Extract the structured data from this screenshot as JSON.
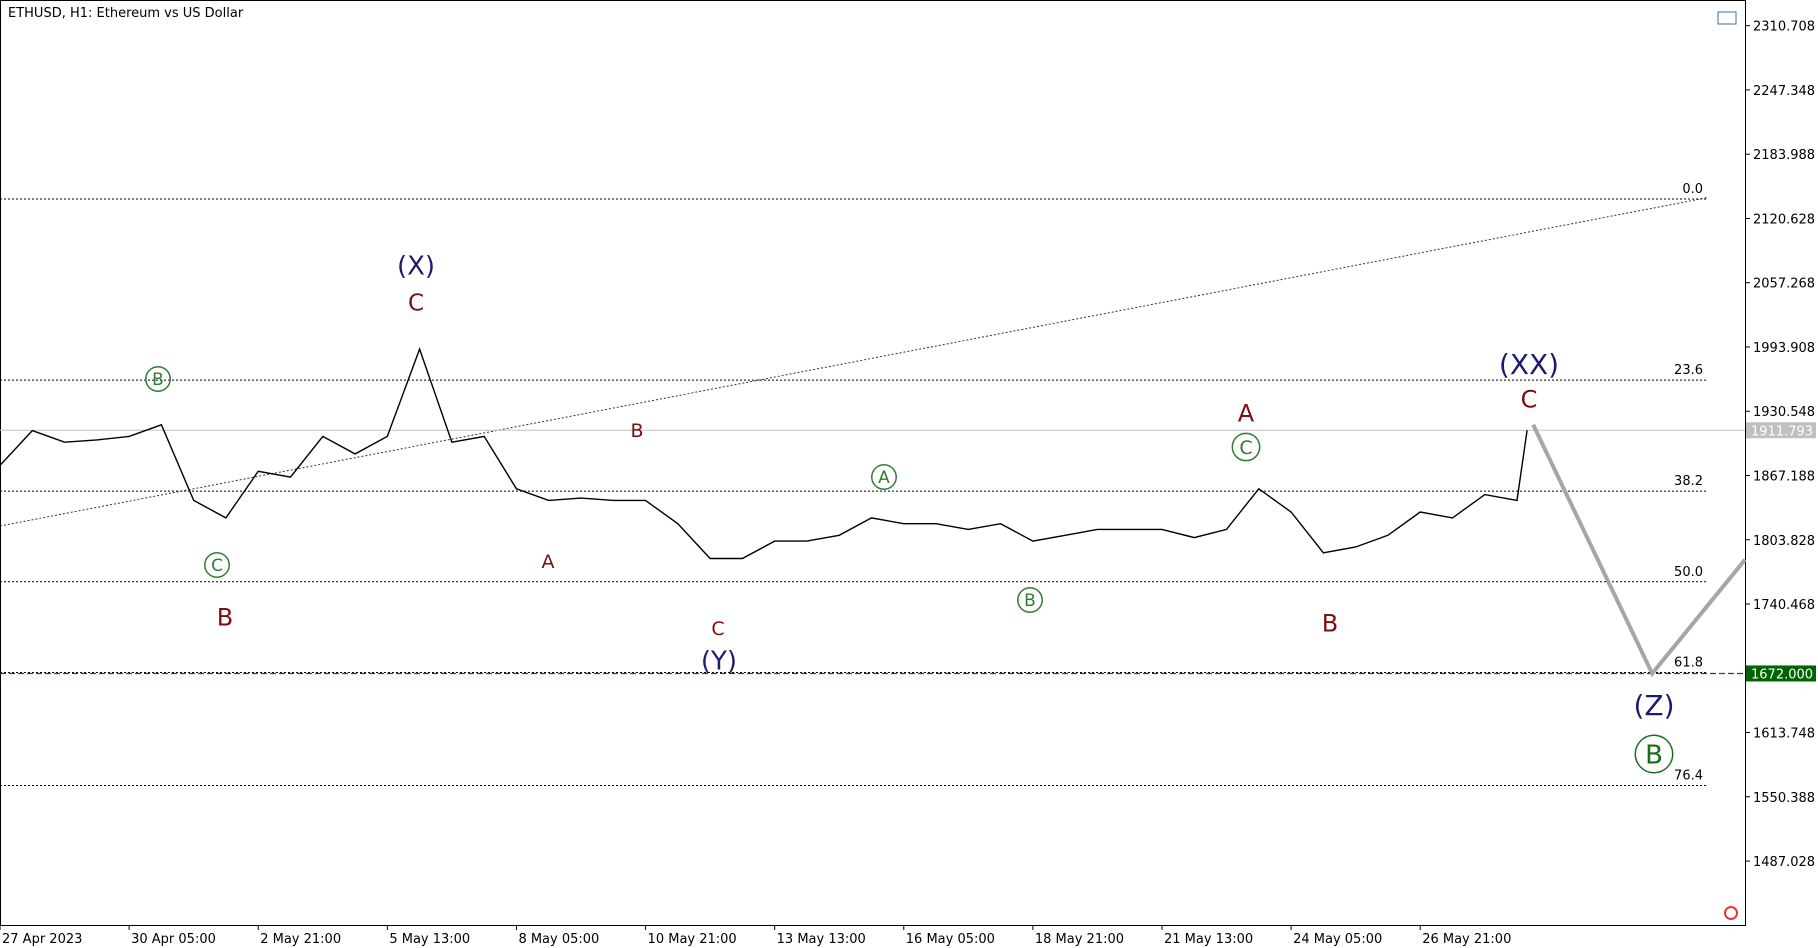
{
  "chart_data": {
    "type": "line",
    "title": "ETHUSD, H1:  Ethereum vs US Dollar",
    "color": "#000000",
    "x": [
      0,
      16,
      32,
      48,
      64,
      80,
      96,
      112,
      128,
      144,
      160,
      176,
      192,
      208,
      224,
      240,
      256,
      272,
      288,
      304,
      320,
      336,
      352,
      368,
      384,
      400,
      416,
      432,
      448,
      464,
      480,
      496,
      512,
      528,
      544,
      560,
      576,
      592,
      608,
      624,
      640,
      656,
      672,
      688,
      704,
      720,
      736,
      752,
      757
    ],
    "values": [
      1877.1,
      1911.5,
      1900.0,
      1902.3,
      1905.7,
      1917.2,
      1842.6,
      1825.4,
      1871.3,
      1865.6,
      1905.7,
      1888.5,
      1905.7,
      1991.8,
      1900.0,
      1905.7,
      1854.1,
      1842.6,
      1844.9,
      1842.6,
      1842.6,
      1819.7,
      1785.3,
      1785.3,
      1802.5,
      1802.5,
      1808.2,
      1825.4,
      1819.7,
      1819.7,
      1814.0,
      1819.7,
      1802.5,
      1808.2,
      1814.0,
      1814.0,
      1814.0,
      1806.0,
      1814.0,
      1854.1,
      1831.2,
      1791.0,
      1796.7,
      1808.2,
      1831.2,
      1825.4,
      1848.4,
      1842.6,
      1911.8
    ],
    "xlim": [
      0,
      865
    ],
    "xticks": [
      {
        "value": 0,
        "label": "27 Apr 2023"
      },
      {
        "value": 64,
        "label": "30 Apr 05:00"
      },
      {
        "value": 128,
        "label": "2 May 21:00"
      },
      {
        "value": 192,
        "label": "5 May 13:00"
      },
      {
        "value": 256,
        "label": "8 May 05:00"
      },
      {
        "value": 320,
        "label": "10 May 21:00"
      },
      {
        "value": 384,
        "label": "13 May 13:00"
      },
      {
        "value": 448,
        "label": "16 May 05:00"
      },
      {
        "value": 512,
        "label": "18 May 21:00"
      },
      {
        "value": 576,
        "label": "21 May 13:00"
      },
      {
        "value": 640,
        "label": "24 May 05:00"
      },
      {
        "value": 704,
        "label": "26 May 21:00"
      }
    ],
    "ylim": [
      1424,
      2336
    ],
    "yticks": [
      2310.708,
      2247.348,
      2183.988,
      2120.628,
      2057.268,
      1993.908,
      1930.548,
      1867.188,
      1803.828,
      1740.468,
      1613.748,
      1550.388,
      1487.028
    ],
    "fib_levels": [
      {
        "label": "0.0",
        "value": 2139.8
      },
      {
        "label": "23.6",
        "value": 1961.2
      },
      {
        "label": "38.2",
        "value": 1851.8
      },
      {
        "label": "50.0",
        "value": 1762.4
      },
      {
        "label": "61.8",
        "value": 1672.9
      },
      {
        "label": "76.4",
        "value": 1561.6
      }
    ],
    "trendline": {
      "x": [
        0,
        846
      ],
      "values": [
        1817.4,
        2141.0
      ],
      "color": "#333333"
    },
    "projection": {
      "x": [
        760,
        819,
        865
      ],
      "values": [
        1917.2,
        1672.0,
        1784.2
      ],
      "color": "#a6a6a6"
    },
    "price_labels": [
      {
        "value": 1911.793,
        "label": "1911.793",
        "color": "#c0c0c0"
      },
      {
        "value": 1672.0,
        "label": "1672.000",
        "color": "#006400"
      }
    ],
    "annotations": [
      {
        "text": "(X)",
        "color": "#1c1c6e",
        "circled": false,
        "size": 26
      },
      {
        "text": "C",
        "color": "#7a1010",
        "circled": false,
        "size": 23
      },
      {
        "text": "B",
        "color": "#2e7d32",
        "circled": true,
        "size": 17
      },
      {
        "text": "C",
        "color": "#2e7d32",
        "circled": true,
        "size": 17
      },
      {
        "text": "B",
        "color": "#7a1010",
        "circled": false,
        "size": 24
      },
      {
        "text": "A",
        "color": "#7a1010",
        "circled": false,
        "size": 19
      },
      {
        "text": "B",
        "color": "#7a1010",
        "circled": false,
        "size": 19
      },
      {
        "text": "C",
        "color": "#7a1010",
        "circled": false,
        "size": 19
      },
      {
        "text": "(Y)",
        "color": "#1c1c6e",
        "circled": false,
        "size": 26
      },
      {
        "text": "A",
        "color": "#2e7d32",
        "circled": true,
        "size": 17
      },
      {
        "text": "B",
        "color": "#2e7d32",
        "circled": true,
        "size": 17
      },
      {
        "text": "A",
        "color": "#7a1010",
        "circled": false,
        "size": 24
      },
      {
        "text": "C",
        "color": "#2e7d32",
        "circled": true,
        "size": 19
      },
      {
        "text": "B",
        "color": "#7a1010",
        "circled": false,
        "size": 24
      },
      {
        "text": "(XX)",
        "color": "#1c1c6e",
        "circled": false,
        "size": 28
      },
      {
        "text": "C",
        "color": "#7a1010",
        "circled": false,
        "size": 24
      },
      {
        "text": "(Z)",
        "color": "#1c1c6e",
        "circled": false,
        "size": 28
      },
      {
        "text": "B",
        "color": "#1b6e1b",
        "circled": true,
        "size": 26
      }
    ]
  }
}
